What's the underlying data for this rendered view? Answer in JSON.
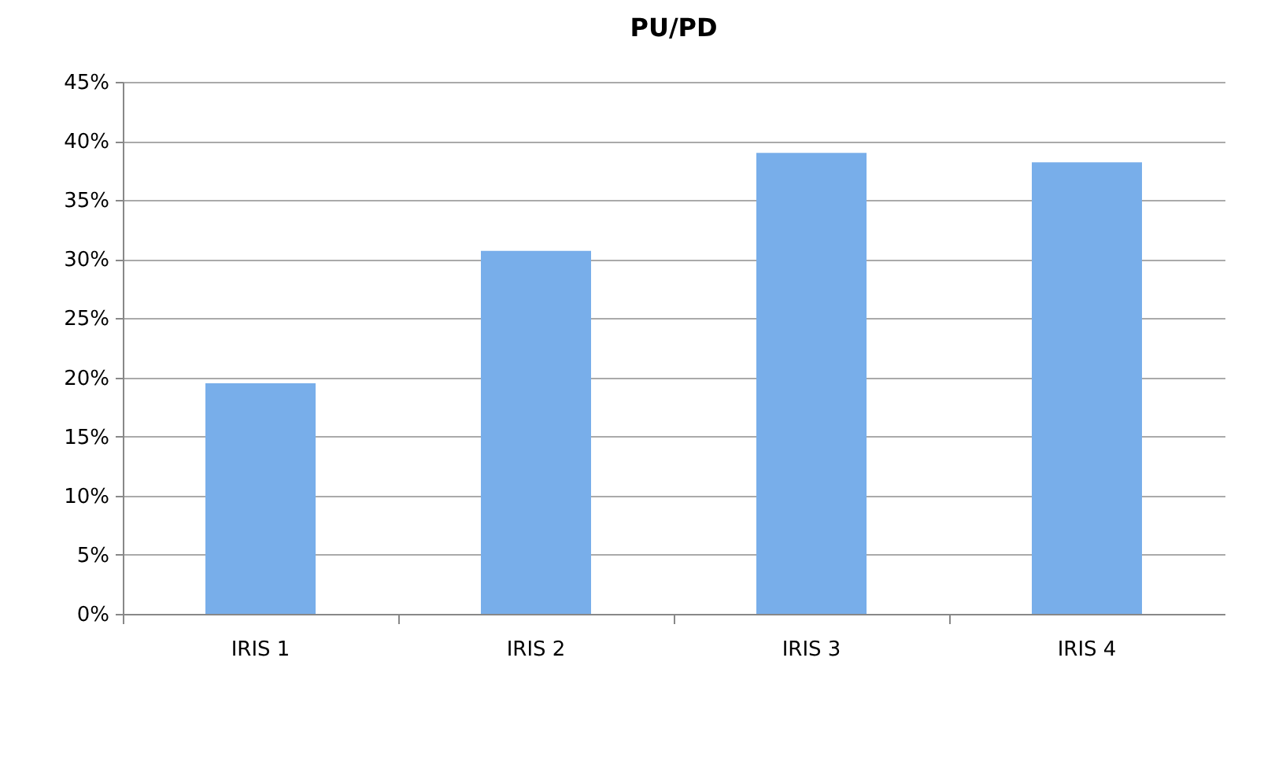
{
  "chart_data": {
    "type": "bar",
    "title": "PU/PD",
    "categories": [
      "IRIS 1",
      "IRIS 2",
      "IRIS 3",
      "IRIS 4"
    ],
    "values": [
      19.5,
      30.7,
      39,
      38.2
    ],
    "color": "#78aeea",
    "ylim": [
      0,
      45
    ],
    "yticks": [
      {
        "value": 0,
        "label": "0%"
      },
      {
        "value": 5,
        "label": "5%"
      },
      {
        "value": 10,
        "label": "10%"
      },
      {
        "value": 15,
        "label": "15%"
      },
      {
        "value": 20,
        "label": "20%"
      },
      {
        "value": 25,
        "label": "25%"
      },
      {
        "value": 30,
        "label": "30%"
      },
      {
        "value": 35,
        "label": "35%"
      },
      {
        "value": 40,
        "label": "40%"
      },
      {
        "value": 45,
        "label": "45%"
      }
    ],
    "grid": "y"
  }
}
